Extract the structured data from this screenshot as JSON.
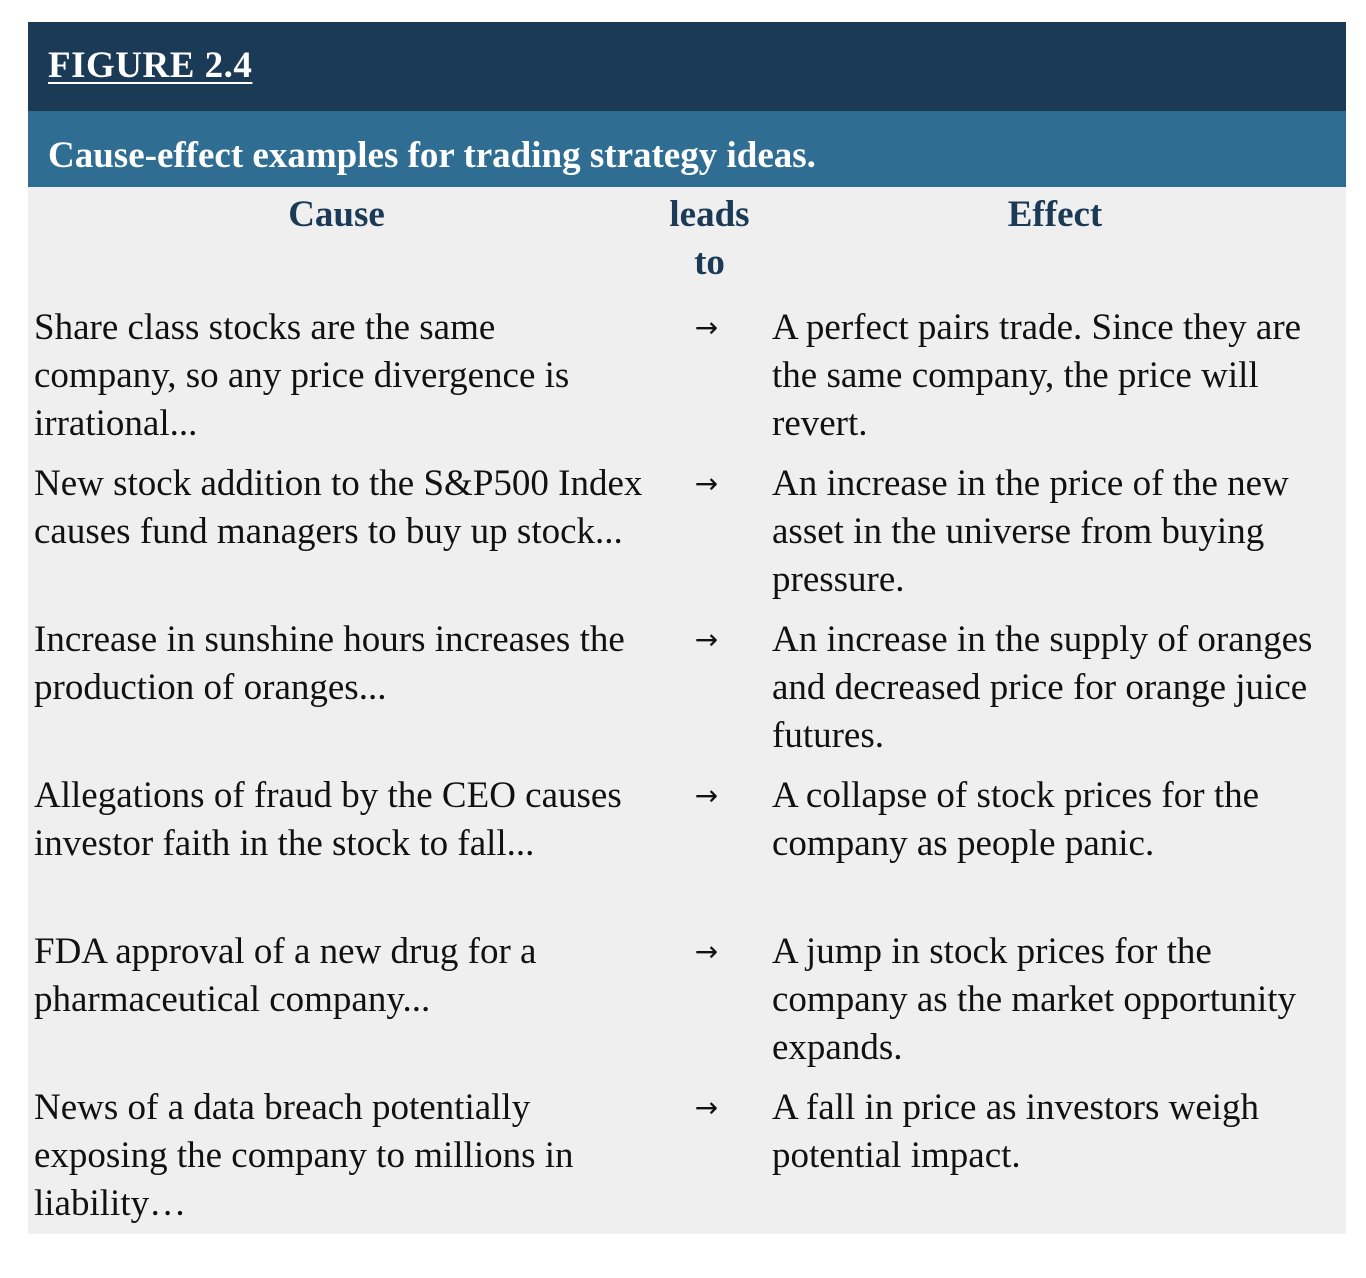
{
  "figure": {
    "label": "FIGURE 2.4",
    "caption": "Cause-effect examples for trading strategy ideas."
  },
  "table": {
    "headers": {
      "cause": "Cause",
      "arrow": "leads to",
      "effect": "Effect"
    },
    "rows": [
      {
        "cause": "Share class stocks are the same company, so any price divergence is irrational...",
        "arrow": "→",
        "effect": "A perfect pairs trade. Since they are the same company, the price will revert."
      },
      {
        "cause": "New stock addition to the S&P500 Index causes fund managers to buy up stock...",
        "arrow": "→",
        "effect": "An increase in the price of the new asset in the universe from buying pressure."
      },
      {
        "cause": "Increase in sunshine hours increases the production of oranges...",
        "arrow": "→",
        "effect": "An increase in the supply of oranges and decreased price for orange juice futures."
      },
      {
        "cause": "Allegations of fraud by the CEO causes investor faith in the stock to fall...",
        "arrow": "→",
        "effect": "A collapse of stock prices for the company as people panic."
      },
      {
        "cause": "FDA approval of a new drug for a pharmaceutical company...",
        "arrow": "→",
        "effect": "A jump in stock prices for the company as the market opportunity expands."
      },
      {
        "cause": "News of a data breach potentially exposing the company to millions in liability…",
        "arrow": "→",
        "effect": "A fall in price as investors weigh potential impact."
      }
    ]
  }
}
